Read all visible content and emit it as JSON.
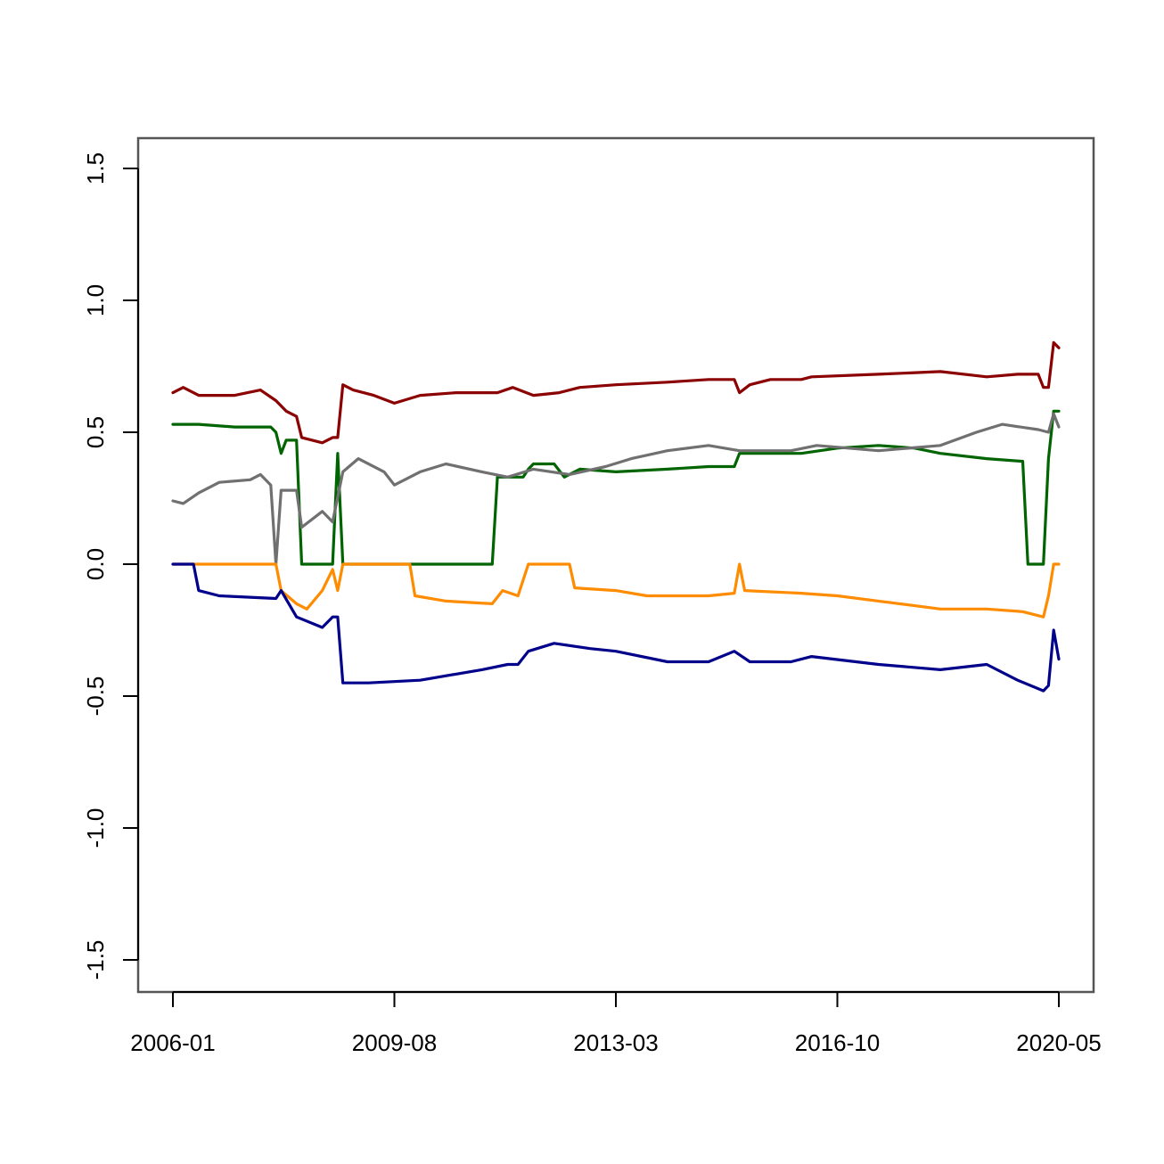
{
  "chart_data": {
    "type": "line",
    "title": "",
    "xlabel": "",
    "ylabel": "",
    "x_ticks": [
      "2006-01",
      "2009-08",
      "2013-03",
      "2016-10",
      "2020-05"
    ],
    "y_ticks": [
      "-1.5",
      "-1.0",
      "-0.5",
      "0.0",
      "0.5",
      "1.0",
      "1.5"
    ],
    "y_tick_values": [
      -1.5,
      -1.0,
      -0.5,
      0.0,
      0.5,
      1.0,
      1.5
    ],
    "xlim": [
      "2006-01",
      "2020-05"
    ],
    "ylim": [
      -1.5,
      1.5
    ],
    "grid": false,
    "legend": "none",
    "series": [
      {
        "color": "#8b0000",
        "points": [
          [
            "2006-01",
            0.65
          ],
          [
            "2006-03",
            0.67
          ],
          [
            "2006-06",
            0.64
          ],
          [
            "2007-01",
            0.64
          ],
          [
            "2007-06",
            0.66
          ],
          [
            "2007-09",
            0.62
          ],
          [
            "2007-11",
            0.58
          ],
          [
            "2008-01",
            0.56
          ],
          [
            "2008-02",
            0.48
          ],
          [
            "2008-06",
            0.46
          ],
          [
            "2008-08",
            0.48
          ],
          [
            "2008-09",
            0.48
          ],
          [
            "2008-10",
            0.68
          ],
          [
            "2008-12",
            0.66
          ],
          [
            "2009-04",
            0.64
          ],
          [
            "2009-08",
            0.61
          ],
          [
            "2010-01",
            0.64
          ],
          [
            "2010-08",
            0.65
          ],
          [
            "2011-04",
            0.65
          ],
          [
            "2011-07",
            0.67
          ],
          [
            "2011-11",
            0.64
          ],
          [
            "2012-04",
            0.65
          ],
          [
            "2012-08",
            0.67
          ],
          [
            "2013-03",
            0.68
          ],
          [
            "2014-01",
            0.69
          ],
          [
            "2014-09",
            0.7
          ],
          [
            "2015-02",
            0.7
          ],
          [
            "2015-03",
            0.65
          ],
          [
            "2015-05",
            0.68
          ],
          [
            "2015-09",
            0.7
          ],
          [
            "2016-03",
            0.7
          ],
          [
            "2016-05",
            0.71
          ],
          [
            "2017-06",
            0.72
          ],
          [
            "2018-06",
            0.73
          ],
          [
            "2019-03",
            0.71
          ],
          [
            "2019-09",
            0.72
          ],
          [
            "2020-01",
            0.72
          ],
          [
            "2020-02",
            0.67
          ],
          [
            "2020-03",
            0.67
          ],
          [
            "2020-04",
            0.84
          ],
          [
            "2020-05",
            0.82
          ]
        ]
      },
      {
        "color": "#006400",
        "points": [
          [
            "2006-01",
            0.53
          ],
          [
            "2006-06",
            0.53
          ],
          [
            "2007-01",
            0.52
          ],
          [
            "2007-08",
            0.52
          ],
          [
            "2007-09",
            0.5
          ],
          [
            "2007-10",
            0.42
          ],
          [
            "2007-11",
            0.47
          ],
          [
            "2008-01",
            0.47
          ],
          [
            "2008-02",
            0.0
          ],
          [
            "2008-08",
            0.0
          ],
          [
            "2008-09",
            0.42
          ],
          [
            "2008-10",
            0.0
          ],
          [
            "2011-03",
            0.0
          ],
          [
            "2011-04",
            0.33
          ],
          [
            "2011-09",
            0.33
          ],
          [
            "2011-10",
            0.36
          ],
          [
            "2011-11",
            0.38
          ],
          [
            "2012-03",
            0.38
          ],
          [
            "2012-05",
            0.33
          ],
          [
            "2012-08",
            0.36
          ],
          [
            "2013-03",
            0.35
          ],
          [
            "2014-01",
            0.36
          ],
          [
            "2014-09",
            0.37
          ],
          [
            "2015-02",
            0.37
          ],
          [
            "2015-03",
            0.42
          ],
          [
            "2016-03",
            0.42
          ],
          [
            "2016-10",
            0.44
          ],
          [
            "2017-06",
            0.45
          ],
          [
            "2018-01",
            0.44
          ],
          [
            "2018-06",
            0.42
          ],
          [
            "2019-03",
            0.4
          ],
          [
            "2019-10",
            0.39
          ],
          [
            "2019-11",
            0.0
          ],
          [
            "2020-02",
            0.0
          ],
          [
            "2020-03",
            0.4
          ],
          [
            "2020-04",
            0.58
          ],
          [
            "2020-05",
            0.58
          ]
        ]
      },
      {
        "color": "#707070",
        "points": [
          [
            "2006-01",
            0.24
          ],
          [
            "2006-03",
            0.23
          ],
          [
            "2006-06",
            0.27
          ],
          [
            "2006-10",
            0.31
          ],
          [
            "2007-04",
            0.32
          ],
          [
            "2007-06",
            0.34
          ],
          [
            "2007-08",
            0.3
          ],
          [
            "2007-09",
            0.0
          ],
          [
            "2007-10",
            0.28
          ],
          [
            "2008-01",
            0.28
          ],
          [
            "2008-02",
            0.14
          ],
          [
            "2008-06",
            0.2
          ],
          [
            "2008-08",
            0.16
          ],
          [
            "2008-10",
            0.35
          ],
          [
            "2009-01",
            0.4
          ],
          [
            "2009-06",
            0.35
          ],
          [
            "2009-08",
            0.3
          ],
          [
            "2010-01",
            0.35
          ],
          [
            "2010-06",
            0.38
          ],
          [
            "2011-01",
            0.35
          ],
          [
            "2011-06",
            0.33
          ],
          [
            "2011-11",
            0.36
          ],
          [
            "2012-06",
            0.34
          ],
          [
            "2013-01",
            0.37
          ],
          [
            "2013-06",
            0.4
          ],
          [
            "2014-01",
            0.43
          ],
          [
            "2014-09",
            0.45
          ],
          [
            "2015-03",
            0.43
          ],
          [
            "2016-01",
            0.43
          ],
          [
            "2016-06",
            0.45
          ],
          [
            "2017-06",
            0.43
          ],
          [
            "2018-06",
            0.45
          ],
          [
            "2019-01",
            0.5
          ],
          [
            "2019-06",
            0.53
          ],
          [
            "2020-01",
            0.51
          ],
          [
            "2020-03",
            0.5
          ],
          [
            "2020-04",
            0.57
          ],
          [
            "2020-05",
            0.52
          ]
        ]
      },
      {
        "color": "#ff8c00",
        "points": [
          [
            "2006-01",
            0.0
          ],
          [
            "2007-09",
            0.0
          ],
          [
            "2007-10",
            -0.1
          ],
          [
            "2008-01",
            -0.15
          ],
          [
            "2008-03",
            -0.17
          ],
          [
            "2008-06",
            -0.1
          ],
          [
            "2008-08",
            -0.02
          ],
          [
            "2008-09",
            -0.1
          ],
          [
            "2008-10",
            0.0
          ],
          [
            "2009-11",
            0.0
          ],
          [
            "2009-12",
            -0.12
          ],
          [
            "2010-06",
            -0.14
          ],
          [
            "2011-03",
            -0.15
          ],
          [
            "2011-05",
            -0.1
          ],
          [
            "2011-08",
            -0.12
          ],
          [
            "2011-10",
            0.0
          ],
          [
            "2012-06",
            0.0
          ],
          [
            "2012-07",
            -0.09
          ],
          [
            "2013-03",
            -0.1
          ],
          [
            "2013-09",
            -0.12
          ],
          [
            "2014-09",
            -0.12
          ],
          [
            "2015-02",
            -0.11
          ],
          [
            "2015-03",
            0.0
          ],
          [
            "2015-04",
            -0.1
          ],
          [
            "2016-03",
            -0.11
          ],
          [
            "2016-10",
            -0.12
          ],
          [
            "2017-06",
            -0.14
          ],
          [
            "2018-06",
            -0.17
          ],
          [
            "2019-03",
            -0.17
          ],
          [
            "2019-10",
            -0.18
          ],
          [
            "2020-02",
            -0.2
          ],
          [
            "2020-03",
            -0.12
          ],
          [
            "2020-04",
            0.0
          ],
          [
            "2020-05",
            0.0
          ]
        ]
      },
      {
        "color": "#00008b",
        "points": [
          [
            "2006-01",
            0.0
          ],
          [
            "2006-05",
            0.0
          ],
          [
            "2006-06",
            -0.1
          ],
          [
            "2006-10",
            -0.12
          ],
          [
            "2007-09",
            -0.13
          ],
          [
            "2007-10",
            -0.1
          ],
          [
            "2008-01",
            -0.2
          ],
          [
            "2008-06",
            -0.24
          ],
          [
            "2008-08",
            -0.2
          ],
          [
            "2008-09",
            -0.2
          ],
          [
            "2008-10",
            -0.45
          ],
          [
            "2009-03",
            -0.45
          ],
          [
            "2010-01",
            -0.44
          ],
          [
            "2011-01",
            -0.4
          ],
          [
            "2011-06",
            -0.38
          ],
          [
            "2011-08",
            -0.38
          ],
          [
            "2011-10",
            -0.33
          ],
          [
            "2012-03",
            -0.3
          ],
          [
            "2012-10",
            -0.32
          ],
          [
            "2013-03",
            -0.33
          ],
          [
            "2014-01",
            -0.37
          ],
          [
            "2014-09",
            -0.37
          ],
          [
            "2015-02",
            -0.33
          ],
          [
            "2015-05",
            -0.37
          ],
          [
            "2016-01",
            -0.37
          ],
          [
            "2016-05",
            -0.35
          ],
          [
            "2017-06",
            -0.38
          ],
          [
            "2018-06",
            -0.4
          ],
          [
            "2019-03",
            -0.38
          ],
          [
            "2019-09",
            -0.44
          ],
          [
            "2020-02",
            -0.48
          ],
          [
            "2020-03",
            -0.46
          ],
          [
            "2020-04",
            -0.25
          ],
          [
            "2020-05",
            -0.36
          ]
        ]
      }
    ]
  }
}
